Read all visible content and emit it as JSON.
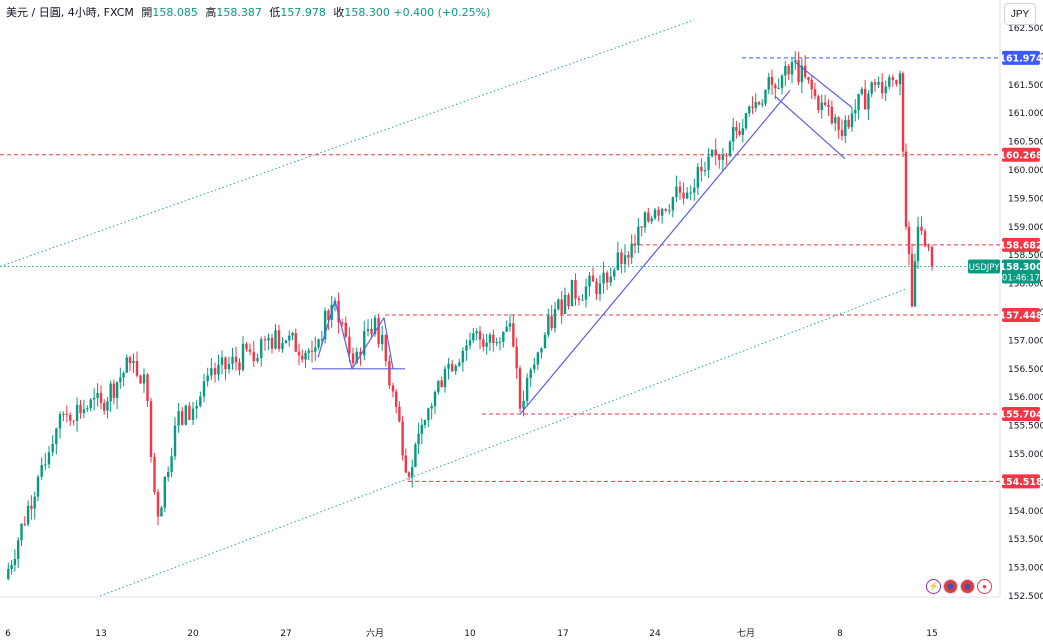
{
  "header": {
    "symbol": "美元 / 日圓, 4小時, FXCM",
    "open_label": "開",
    "open_value": "158.085",
    "high_label": "高",
    "high_value": "158.387",
    "low_label": "低",
    "low_value": "157.978",
    "close_label": "收",
    "close_value": "158.300",
    "change": "+0.400 (+0.25%)"
  },
  "currency_button": "JPY",
  "toolbar_icons": [
    "lightning-icon",
    "us-flag-icon",
    "us-flag-icon",
    "record-icon"
  ],
  "colors": {
    "up": "#089981",
    "down": "#f23645",
    "level_red": "#f23645",
    "level_blue": "#3d5afe",
    "channel": "#26a69a",
    "drawing": "#5b5fe6",
    "text": "#131722"
  },
  "chart_data": {
    "type": "candlestick",
    "symbol": "USDJPY",
    "interval": "4小時",
    "ylim": [
      152.5,
      162.5
    ],
    "yticks": [
      "152.500",
      "153.000",
      "153.500",
      "154.000",
      "154.500",
      "155.000",
      "155.500",
      "156.000",
      "156.500",
      "157.000",
      "157.500",
      "158.000",
      "158.500",
      "159.000",
      "159.500",
      "160.000",
      "160.500",
      "161.000",
      "161.500",
      "162.000",
      "162.500"
    ],
    "xticks": [
      "6",
      "13",
      "20",
      "27",
      "六月",
      "10",
      "17",
      "24",
      "七月",
      "8",
      "15"
    ],
    "price_levels": [
      {
        "value": "161.974",
        "style": "blue-dashed"
      },
      {
        "value": "160.268",
        "style": "red-dashed"
      },
      {
        "value": "158.682",
        "style": "red-dashed"
      },
      {
        "value": "157.448",
        "style": "red-dashed"
      },
      {
        "value": "155.704",
        "style": "red-dashed"
      },
      {
        "value": "154.518",
        "style": "red-dashed"
      }
    ],
    "last_price": {
      "label": "USDJPY",
      "value": "158.300",
      "countdown": "01:46:17"
    },
    "series": [
      {
        "date": "6",
        "price": 152.8
      },
      {
        "date": "8",
        "price": 154.6
      },
      {
        "date": "10",
        "price": 155.7
      },
      {
        "date": "13",
        "price": 155.9
      },
      {
        "date": "15",
        "price": 156.6
      },
      {
        "date": "16",
        "price": 156.4
      },
      {
        "date": "17",
        "price": 153.9
      },
      {
        "date": "18",
        "price": 155.5
      },
      {
        "date": "20",
        "price": 155.8
      },
      {
        "date": "22",
        "price": 156.4
      },
      {
        "date": "24",
        "price": 156.8
      },
      {
        "date": "25",
        "price": 157.0
      },
      {
        "date": "27",
        "price": 157.0
      },
      {
        "date": "28",
        "price": 156.8
      },
      {
        "date": "29",
        "price": 157.7
      },
      {
        "date": "30",
        "price": 156.6
      },
      {
        "date": "31",
        "price": 157.2
      },
      {
        "date": "六月",
        "price": 157.4
      },
      {
        "date": "3",
        "price": 156.1
      },
      {
        "date": "4",
        "price": 154.6
      },
      {
        "date": "6",
        "price": 155.6
      },
      {
        "date": "7",
        "price": 156.5
      },
      {
        "date": "10",
        "price": 157.0
      },
      {
        "date": "11",
        "price": 157.1
      },
      {
        "date": "12",
        "price": 157.3
      },
      {
        "date": "14",
        "price": 155.8
      },
      {
        "date": "17",
        "price": 157.1
      },
      {
        "date": "18",
        "price": 157.8
      },
      {
        "date": "20",
        "price": 158.0
      },
      {
        "date": "21",
        "price": 158.5
      },
      {
        "date": "24",
        "price": 159.3
      },
      {
        "date": "25",
        "price": 159.6
      },
      {
        "date": "27",
        "price": 160.0
      },
      {
        "date": "28",
        "price": 160.5
      },
      {
        "date": "七月",
        "price": 161.0
      },
      {
        "date": "2",
        "price": 161.5
      },
      {
        "date": "3",
        "price": 161.9
      },
      {
        "date": "5",
        "price": 161.3
      },
      {
        "date": "8",
        "price": 160.6
      },
      {
        "date": "9",
        "price": 161.0
      },
      {
        "date": "10",
        "price": 161.5
      },
      {
        "date": "11",
        "price": 161.7
      },
      {
        "date": "11",
        "price": 159.0
      },
      {
        "date": "12",
        "price": 157.6
      },
      {
        "date": "12",
        "price": 159.0
      },
      {
        "date": "15",
        "price": 158.3
      }
    ]
  }
}
